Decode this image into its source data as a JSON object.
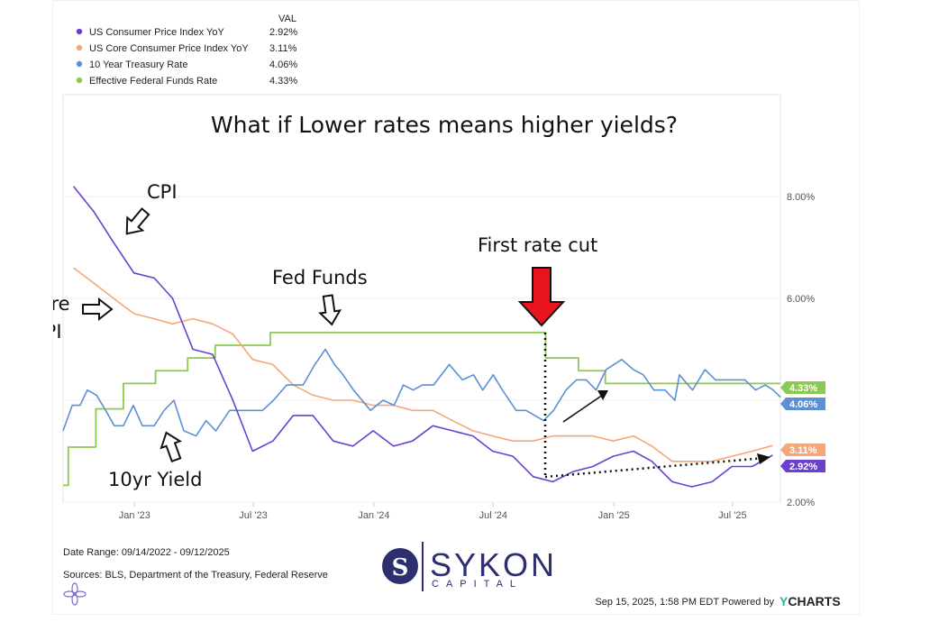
{
  "chart_data": {
    "type": "line",
    "title": "What if Lower rates means higher yields?",
    "legend": {
      "header": "VAL",
      "placement": "top-left",
      "entries": [
        {
          "name": "US Consumer Price Index YoY",
          "value": "2.92%",
          "color": "#6a3fd1"
        },
        {
          "name": "US Core Consumer Price Index YoY",
          "value": "3.11%",
          "color": "#f4a77a"
        },
        {
          "name": "10 Year Treasury Rate",
          "value": "4.06%",
          "color": "#5b8fd6"
        },
        {
          "name": "Effective Federal Funds Rate",
          "value": "4.33%",
          "color": "#8cc950"
        }
      ]
    },
    "x_ticks": [
      "Jan '23",
      "Jul '23",
      "Jan '24",
      "Jul '24",
      "Jan '25",
      "Jul '25"
    ],
    "y_ticks": [
      "2.00%",
      "6.00%",
      "8.00%"
    ],
    "ylim": [
      2,
      10
    ],
    "xlim": [
      "2022-09-14",
      "2025-09-12"
    ],
    "grid": true,
    "series": [
      {
        "name": "US Consumer Price Index YoY",
        "color": "#6a3fd1",
        "end_label": "2.92%",
        "points": [
          [
            "2022-09-30",
            8.2
          ],
          [
            "2022-10-31",
            7.7
          ],
          [
            "2022-11-30",
            7.1
          ],
          [
            "2022-12-31",
            6.5
          ],
          [
            "2023-01-31",
            6.4
          ],
          [
            "2023-02-28",
            6.0
          ],
          [
            "2023-03-31",
            5.0
          ],
          [
            "2023-04-30",
            4.9
          ],
          [
            "2023-05-31",
            4.0
          ],
          [
            "2023-06-30",
            3.0
          ],
          [
            "2023-07-31",
            3.2
          ],
          [
            "2023-08-31",
            3.7
          ],
          [
            "2023-09-30",
            3.7
          ],
          [
            "2023-10-31",
            3.2
          ],
          [
            "2023-11-30",
            3.1
          ],
          [
            "2023-12-31",
            3.4
          ],
          [
            "2024-01-31",
            3.1
          ],
          [
            "2024-02-29",
            3.2
          ],
          [
            "2024-03-31",
            3.5
          ],
          [
            "2024-04-30",
            3.4
          ],
          [
            "2024-05-31",
            3.3
          ],
          [
            "2024-06-30",
            3.0
          ],
          [
            "2024-07-31",
            2.9
          ],
          [
            "2024-08-31",
            2.5
          ],
          [
            "2024-09-30",
            2.4
          ],
          [
            "2024-10-31",
            2.6
          ],
          [
            "2024-11-30",
            2.7
          ],
          [
            "2024-12-31",
            2.9
          ],
          [
            "2025-01-31",
            3.0
          ],
          [
            "2025-02-28",
            2.8
          ],
          [
            "2025-03-31",
            2.4
          ],
          [
            "2025-04-30",
            2.3
          ],
          [
            "2025-05-31",
            2.4
          ],
          [
            "2025-06-30",
            2.7
          ],
          [
            "2025-07-31",
            2.7
          ],
          [
            "2025-08-31",
            2.92
          ]
        ]
      },
      {
        "name": "US Core Consumer Price Index YoY",
        "color": "#f4a77a",
        "end_label": "3.11%",
        "points": [
          [
            "2022-09-30",
            6.6
          ],
          [
            "2022-10-31",
            6.3
          ],
          [
            "2022-11-30",
            6.0
          ],
          [
            "2022-12-31",
            5.7
          ],
          [
            "2023-01-31",
            5.6
          ],
          [
            "2023-02-28",
            5.5
          ],
          [
            "2023-03-31",
            5.6
          ],
          [
            "2023-04-30",
            5.5
          ],
          [
            "2023-05-31",
            5.3
          ],
          [
            "2023-06-30",
            4.8
          ],
          [
            "2023-07-31",
            4.7
          ],
          [
            "2023-08-31",
            4.3
          ],
          [
            "2023-09-30",
            4.1
          ],
          [
            "2023-10-31",
            4.0
          ],
          [
            "2023-11-30",
            4.0
          ],
          [
            "2023-12-31",
            3.9
          ],
          [
            "2024-01-31",
            3.9
          ],
          [
            "2024-02-29",
            3.8
          ],
          [
            "2024-03-31",
            3.8
          ],
          [
            "2024-04-30",
            3.6
          ],
          [
            "2024-05-31",
            3.4
          ],
          [
            "2024-06-30",
            3.3
          ],
          [
            "2024-07-31",
            3.2
          ],
          [
            "2024-08-31",
            3.2
          ],
          [
            "2024-09-30",
            3.3
          ],
          [
            "2024-10-31",
            3.3
          ],
          [
            "2024-11-30",
            3.3
          ],
          [
            "2024-12-31",
            3.2
          ],
          [
            "2025-01-31",
            3.3
          ],
          [
            "2025-02-28",
            3.1
          ],
          [
            "2025-03-31",
            2.8
          ],
          [
            "2025-04-30",
            2.8
          ],
          [
            "2025-05-31",
            2.8
          ],
          [
            "2025-06-30",
            2.9
          ],
          [
            "2025-07-31",
            3.0
          ],
          [
            "2025-08-31",
            3.11
          ]
        ]
      },
      {
        "name": "10 Year Treasury Rate",
        "color": "#5b8fd6",
        "end_label": "4.06%",
        "points": [
          [
            "2022-09-14",
            3.4
          ],
          [
            "2022-09-28",
            3.9
          ],
          [
            "2022-10-10",
            3.9
          ],
          [
            "2022-10-21",
            4.2
          ],
          [
            "2022-11-04",
            4.1
          ],
          [
            "2022-11-18",
            3.8
          ],
          [
            "2022-12-01",
            3.5
          ],
          [
            "2022-12-15",
            3.5
          ],
          [
            "2022-12-30",
            3.9
          ],
          [
            "2023-01-13",
            3.5
          ],
          [
            "2023-01-31",
            3.5
          ],
          [
            "2023-02-15",
            3.8
          ],
          [
            "2023-03-02",
            4.0
          ],
          [
            "2023-03-17",
            3.4
          ],
          [
            "2023-04-05",
            3.3
          ],
          [
            "2023-04-20",
            3.6
          ],
          [
            "2023-05-05",
            3.4
          ],
          [
            "2023-05-26",
            3.8
          ],
          [
            "2023-06-14",
            3.8
          ],
          [
            "2023-06-30",
            3.8
          ],
          [
            "2023-07-15",
            3.8
          ],
          [
            "2023-08-01",
            4.0
          ],
          [
            "2023-08-21",
            4.3
          ],
          [
            "2023-09-15",
            4.3
          ],
          [
            "2023-10-03",
            4.7
          ],
          [
            "2023-10-19",
            5.0
          ],
          [
            "2023-11-02",
            4.7
          ],
          [
            "2023-11-15",
            4.5
          ],
          [
            "2023-12-01",
            4.2
          ],
          [
            "2023-12-27",
            3.8
          ],
          [
            "2024-01-15",
            4.0
          ],
          [
            "2024-02-01",
            3.9
          ],
          [
            "2024-02-15",
            4.3
          ],
          [
            "2024-03-01",
            4.2
          ],
          [
            "2024-03-15",
            4.3
          ],
          [
            "2024-04-01",
            4.3
          ],
          [
            "2024-04-25",
            4.7
          ],
          [
            "2024-05-15",
            4.4
          ],
          [
            "2024-06-01",
            4.5
          ],
          [
            "2024-06-15",
            4.2
          ],
          [
            "2024-07-01",
            4.5
          ],
          [
            "2024-07-15",
            4.2
          ],
          [
            "2024-08-05",
            3.8
          ],
          [
            "2024-08-20",
            3.8
          ],
          [
            "2024-09-16",
            3.6
          ],
          [
            "2024-10-01",
            3.8
          ],
          [
            "2024-10-20",
            4.2
          ],
          [
            "2024-11-05",
            4.4
          ],
          [
            "2024-11-20",
            4.4
          ],
          [
            "2024-12-05",
            4.2
          ],
          [
            "2024-12-20",
            4.6
          ],
          [
            "2025-01-13",
            4.8
          ],
          [
            "2025-01-31",
            4.6
          ],
          [
            "2025-02-15",
            4.5
          ],
          [
            "2025-03-03",
            4.2
          ],
          [
            "2025-03-20",
            4.2
          ],
          [
            "2025-04-04",
            4.0
          ],
          [
            "2025-04-11",
            4.5
          ],
          [
            "2025-05-01",
            4.2
          ],
          [
            "2025-05-20",
            4.6
          ],
          [
            "2025-06-05",
            4.4
          ],
          [
            "2025-06-20",
            4.4
          ],
          [
            "2025-07-05",
            4.4
          ],
          [
            "2025-07-20",
            4.4
          ],
          [
            "2025-08-05",
            4.2
          ],
          [
            "2025-08-20",
            4.3
          ],
          [
            "2025-09-01",
            4.2
          ],
          [
            "2025-09-12",
            4.06
          ]
        ]
      },
      {
        "name": "Effective Federal Funds Rate",
        "color": "#8cc950",
        "end_label": "4.33%",
        "step": true,
        "points": [
          [
            "2022-09-14",
            2.33
          ],
          [
            "2022-09-22",
            3.08
          ],
          [
            "2022-11-03",
            3.83
          ],
          [
            "2022-12-15",
            4.33
          ],
          [
            "2023-02-02",
            4.58
          ],
          [
            "2023-03-23",
            4.83
          ],
          [
            "2023-05-04",
            5.08
          ],
          [
            "2023-07-27",
            5.33
          ],
          [
            "2024-09-19",
            4.83
          ],
          [
            "2024-11-08",
            4.58
          ],
          [
            "2024-12-19",
            4.33
          ],
          [
            "2025-09-12",
            4.33
          ]
        ]
      }
    ],
    "annotations": [
      {
        "id": "cpi",
        "text": "CPI"
      },
      {
        "id": "core-cpi-line1",
        "text": "Core"
      },
      {
        "id": "core-cpi-line2",
        "text": "CPI"
      },
      {
        "id": "fed-funds",
        "text": "Fed Funds"
      },
      {
        "id": "first-rate-cut",
        "text": "First rate cut"
      },
      {
        "id": "10yr-yield",
        "text": "10yr Yield"
      }
    ]
  },
  "footer": {
    "date_range": "Date Range: 09/14/2022 - 09/12/2025",
    "sources": "Sources: BLS, Department of the Treasury, Federal Reserve",
    "timestamp": "Sep 15, 2025, 1:58 PM EDT",
    "powered_by": "Powered by",
    "ycharts_y": "Y",
    "ycharts_rest": "CHARTS"
  },
  "logo": {
    "name": "SYKON",
    "tagline": "CAPITAL",
    "monogram": "S"
  }
}
